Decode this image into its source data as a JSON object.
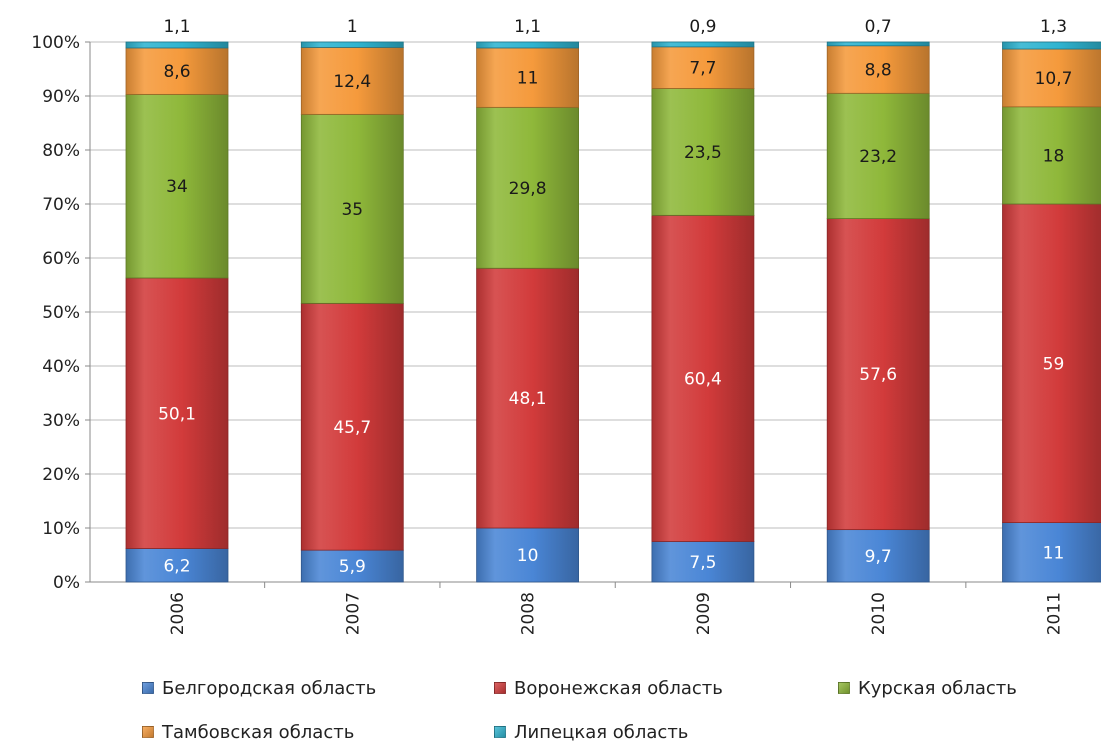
{
  "chart_data": {
    "type": "bar",
    "stacked": true,
    "percent_stacked": true,
    "categories": [
      "2006",
      "2007",
      "2008",
      "2009",
      "2010",
      "2011"
    ],
    "series": [
      {
        "name": "Белгородская область",
        "color": "#4a86d6",
        "values": [
          6.2,
          5.9,
          10,
          7.5,
          9.7,
          11
        ],
        "labels": [
          "6,2",
          "5,9",
          "10",
          "7,5",
          "9,7",
          "11"
        ],
        "label_color": "#ffffff"
      },
      {
        "name": "Воронежская область",
        "color": "#d23b3b",
        "values": [
          50.1,
          45.7,
          48.1,
          60.4,
          57.6,
          59
        ],
        "labels": [
          "50,1",
          "45,7",
          "48,1",
          "60,4",
          "57,6",
          "59"
        ],
        "label_color": "#ffffff"
      },
      {
        "name": "Курская область",
        "color": "#8fb83a",
        "values": [
          34,
          35,
          29.8,
          23.5,
          23.2,
          18
        ],
        "labels": [
          "34",
          "35",
          "29,8",
          "23,5",
          "23,2",
          "18"
        ],
        "label_color": "#1a1a1a"
      },
      {
        "name": "Тамбовская область",
        "color": "#f59a3c",
        "values": [
          8.6,
          12.4,
          11,
          7.7,
          8.8,
          10.7
        ],
        "labels": [
          "8,6",
          "12,4",
          "11",
          "7,7",
          "8,8",
          "10,7"
        ],
        "label_color": "#1a1a1a"
      },
      {
        "name": "Липецкая область",
        "color": "#2fb4d0",
        "values": [
          1.1,
          1,
          1.1,
          0.9,
          0.7,
          1.3
        ],
        "labels": [
          "1,1",
          "1",
          "1,1",
          "0,9",
          "0,7",
          "1,3"
        ],
        "label_color": "#1a1a1a"
      }
    ],
    "yticks": [
      "0%",
      "10%",
      "20%",
      "30%",
      "40%",
      "50%",
      "60%",
      "70%",
      "80%",
      "90%",
      "100%"
    ],
    "ylim": [
      0,
      100
    ],
    "grid": true,
    "legend_position": "bottom",
    "title": "",
    "xlabel": "",
    "ylabel": ""
  }
}
